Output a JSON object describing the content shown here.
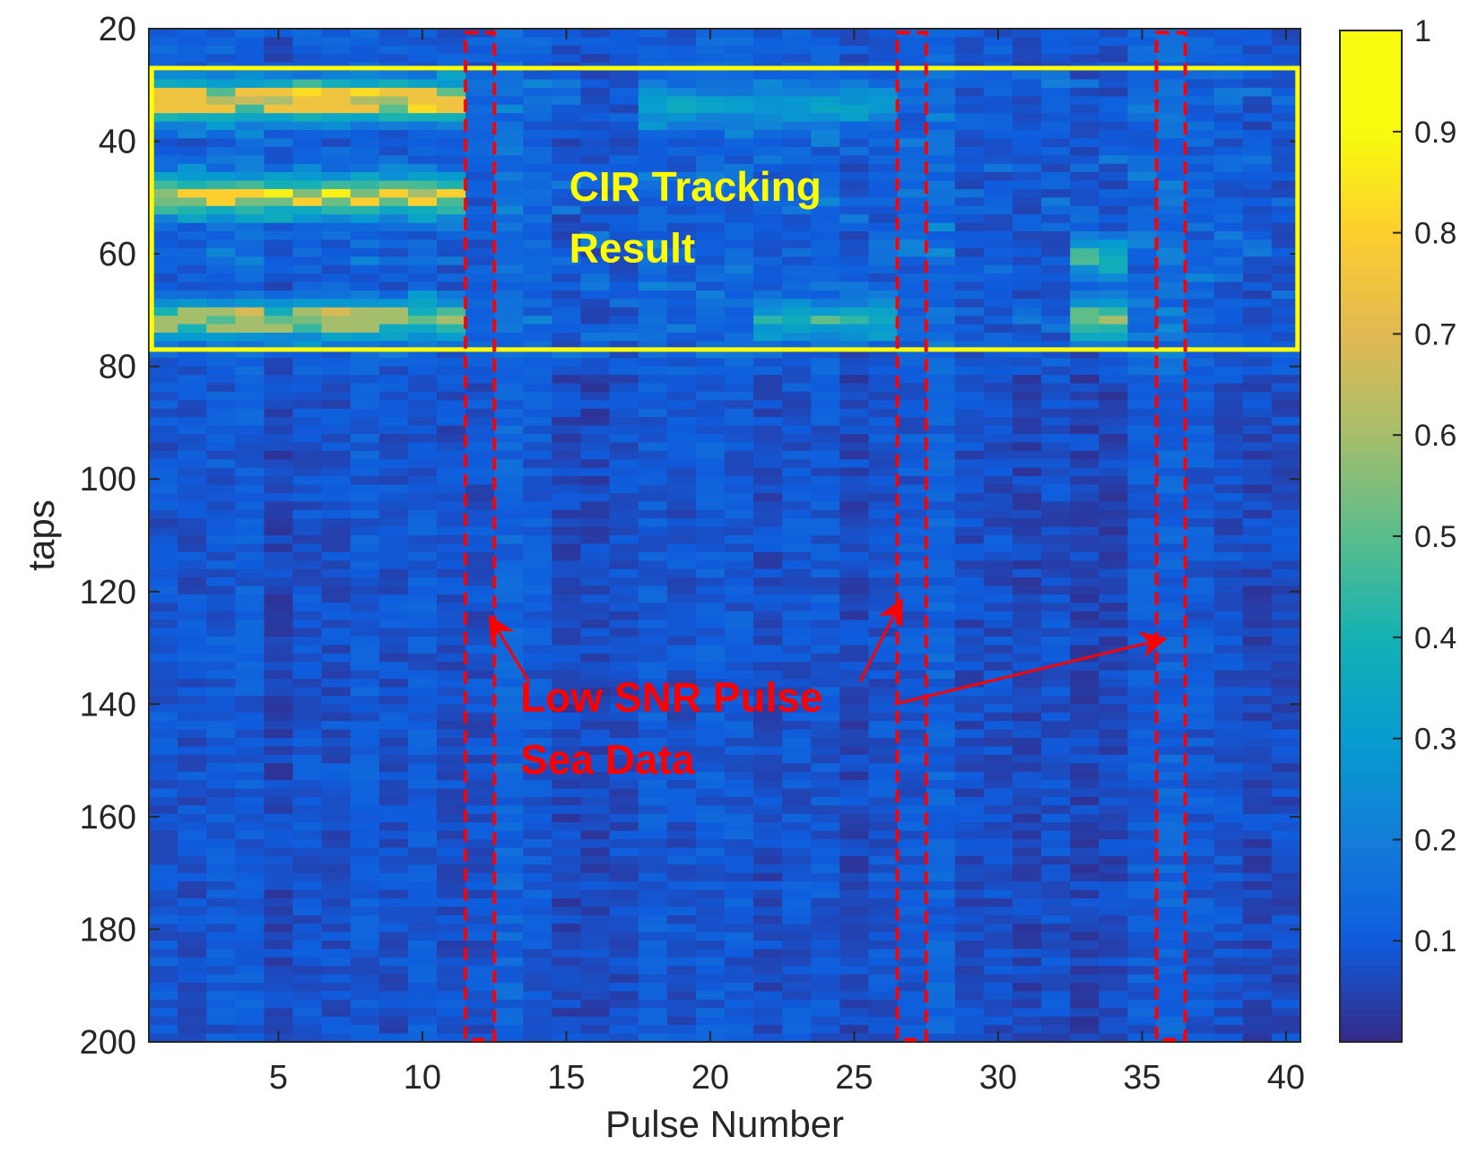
{
  "chart_data": {
    "type": "heatmap",
    "xlabel": "Pulse Number",
    "ylabel": "taps",
    "xlim": [
      0.5,
      40.5
    ],
    "ylim": [
      200,
      20
    ],
    "y_reversed": true,
    "x_ticks": [
      5,
      10,
      15,
      20,
      25,
      30,
      35,
      40
    ],
    "y_ticks": [
      20,
      40,
      60,
      80,
      100,
      120,
      140,
      160,
      180,
      200
    ],
    "pulses": 40,
    "taps_range": [
      20,
      200
    ],
    "colormap": "parula",
    "color_range": [
      0,
      1
    ],
    "colorbar_ticks": [
      0.1,
      0.2,
      0.3,
      0.4,
      0.5,
      0.6,
      0.7,
      0.8,
      0.9,
      1
    ],
    "colorbar_tick_labels": [
      "0.1",
      "0.2",
      "0.3",
      "0.4",
      "0.5",
      "0.6",
      "0.7",
      "0.8",
      "0.9",
      "1"
    ],
    "background_level": 0.1,
    "bright_rows": [
      {
        "tap": 32,
        "level": 0.6,
        "pulses": [
          1,
          11
        ],
        "peak": 0.75
      },
      {
        "tap": 49,
        "level": 0.6,
        "pulses": [
          1,
          11
        ],
        "peak": 0.8
      },
      {
        "tap": 71,
        "level": 0.5,
        "pulses": [
          1,
          11
        ],
        "peak": 0.6
      },
      {
        "tap": 33,
        "level": 0.35,
        "pulses": [
          18,
          26
        ]
      },
      {
        "tap": 71,
        "level": 0.4,
        "pulses": [
          22,
          26
        ]
      },
      {
        "tap": 60,
        "level": 0.4,
        "pulses": [
          33,
          34
        ]
      },
      {
        "tap": 71,
        "level": 0.55,
        "pulses": [
          33,
          34
        ]
      }
    ],
    "low_snr_pulses": [
      12,
      27,
      36
    ],
    "tracking_box": {
      "taps": [
        27,
        77
      ],
      "pulses": [
        0.6,
        40.4
      ]
    },
    "annotations": {
      "tracking_line1": "CIR Tracking",
      "tracking_line2": "Result",
      "lowsnr_line1": "Low SNR Pulse",
      "lowsnr_line2": "Sea Data"
    },
    "colors": {
      "tracking_box": "#ffff00",
      "low_snr_marker": "#ff0000",
      "axes": "#262626"
    }
  }
}
